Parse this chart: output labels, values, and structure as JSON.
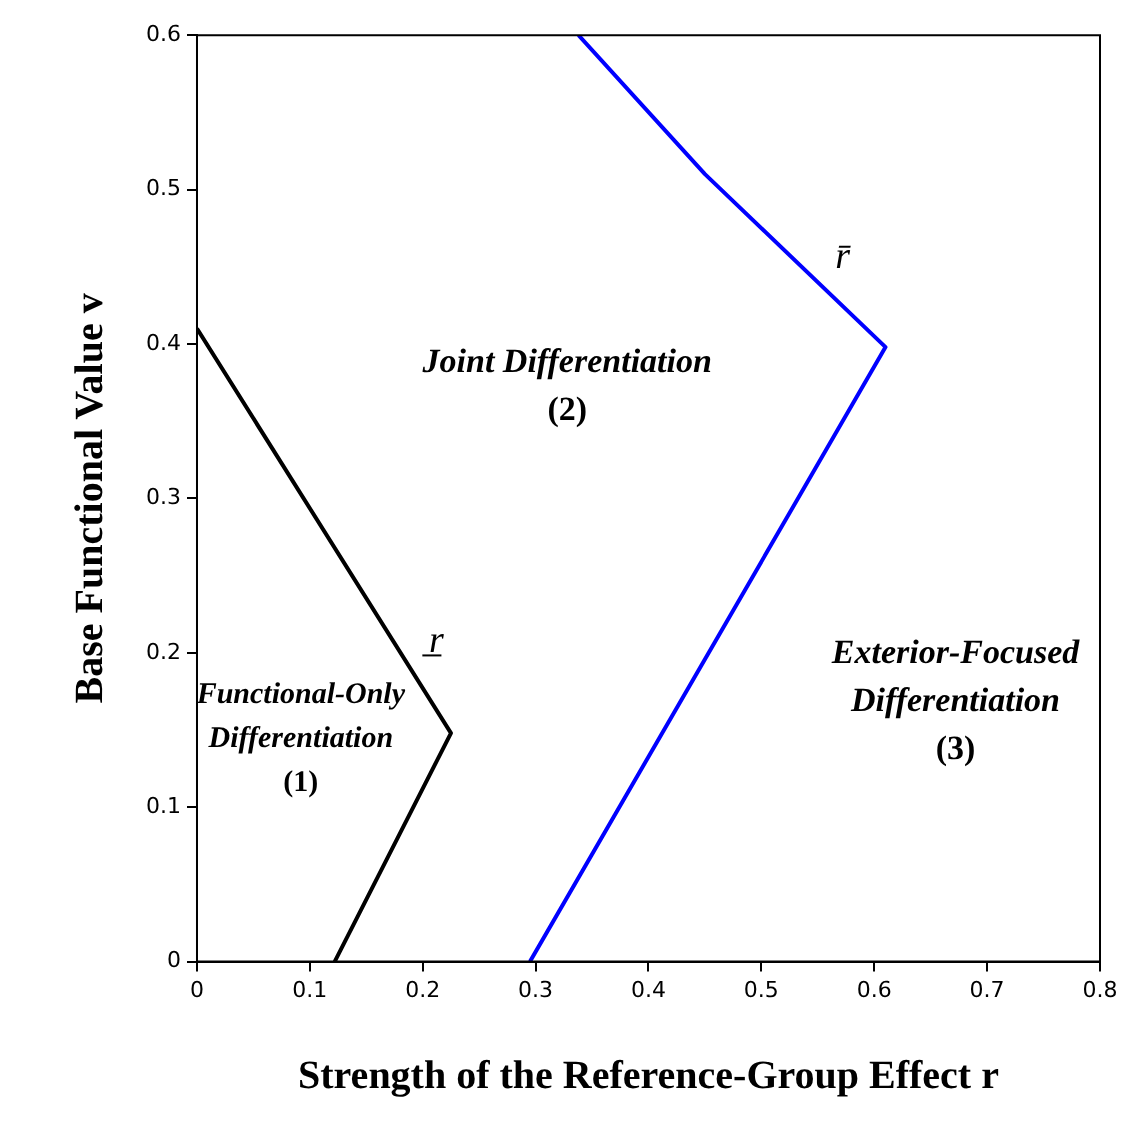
{
  "chart_data": {
    "type": "line",
    "xlabel": "Strength of the Reference-Group Effect r",
    "ylabel": "Base Functional Value v",
    "xlim": [
      0,
      0.8
    ],
    "xticks": [
      0,
      0.1,
      0.2,
      0.3,
      0.4,
      0.5,
      0.6,
      0.7,
      0.8
    ],
    "ylim": [
      0,
      0.6
    ],
    "yticks": [
      0,
      0.1,
      0.2,
      0.3,
      0.4,
      0.5,
      0.6
    ],
    "grid": false,
    "legend": false,
    "marker": "none",
    "line_style": "solid",
    "series": [
      {
        "color": "#000000",
        "x": [
          0,
          0.225,
          0.122
        ],
        "values": [
          0.41,
          0.148,
          0
        ]
      },
      {
        "color": "#0000ff",
        "x": [
          0.338,
          0.45,
          0.61,
          0.295
        ],
        "values": [
          0.6,
          0.51,
          0.398,
          0
        ]
      }
    ],
    "annotations": [
      "r̲",
      "r̄",
      "Functional-Only\nDifferentiation\n(1)",
      "Joint Differentiation\n(2)",
      "Exterior-Focused\nDifferentiation\n(3)"
    ]
  }
}
